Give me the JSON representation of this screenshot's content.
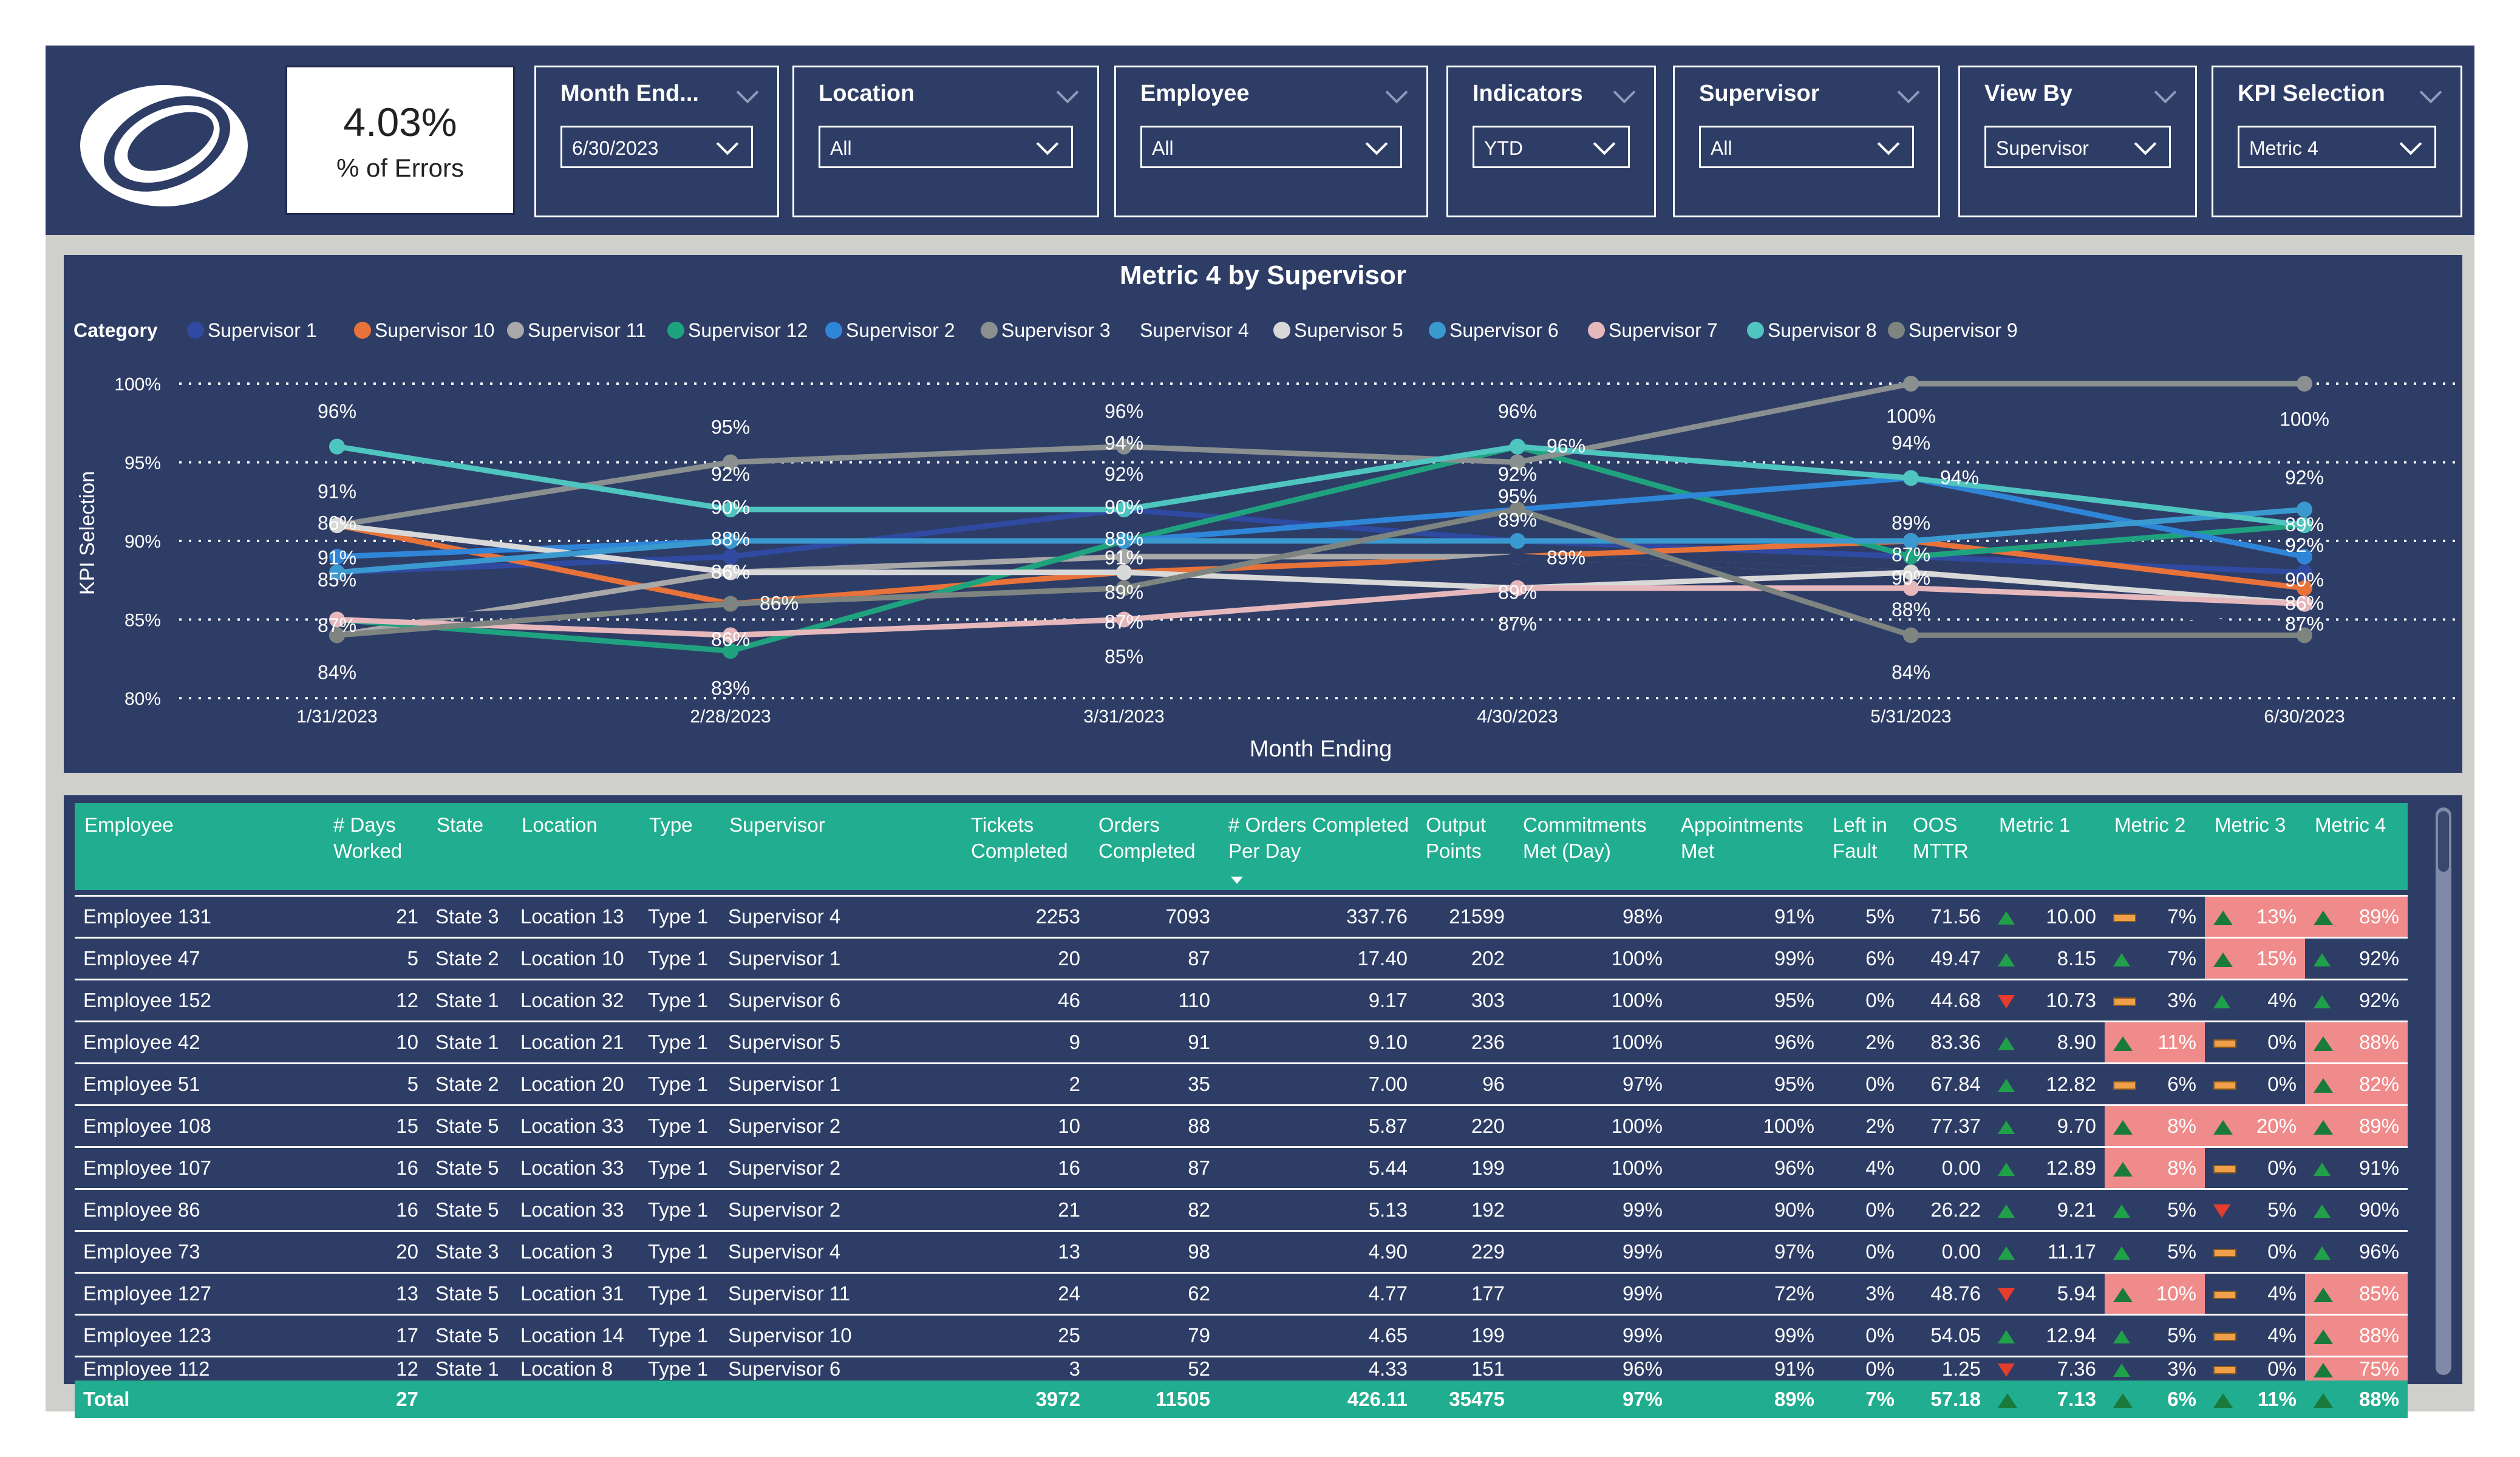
{
  "kpi": {
    "value": "4.03%",
    "label": "% of Errors"
  },
  "slicers": [
    {
      "title": "Month End...",
      "value": "6/30/2023"
    },
    {
      "title": "Location",
      "value": "All"
    },
    {
      "title": "Employee",
      "value": "All"
    },
    {
      "title": "Indicators",
      "value": "YTD"
    },
    {
      "title": "Supervisor",
      "value": "All"
    },
    {
      "title": "View By",
      "value": "Supervisor"
    },
    {
      "title": "KPI Selection",
      "value": "Metric 4"
    }
  ],
  "chart_data": {
    "type": "line",
    "title": "Metric 4 by Supervisor",
    "legend_title": "Category",
    "xlabel": "Month Ending",
    "ylabel": "KPI Selection",
    "x": [
      "1/31/2023",
      "2/28/2023",
      "3/31/2023",
      "4/30/2023",
      "5/31/2023",
      "6/30/2023"
    ],
    "ylim": [
      80,
      100
    ],
    "yticks": [
      "80%",
      "85%",
      "90%",
      "95%",
      "100%"
    ],
    "series": [
      {
        "name": "Supervisor 1",
        "color": "#2f4aa0",
        "values": [
          88,
          89,
          92,
          90,
          89,
          88
        ]
      },
      {
        "name": "Supervisor 10",
        "color": "#e8733a",
        "values": [
          91,
          86,
          88,
          89,
          90,
          87
        ]
      },
      {
        "name": "Supervisor 11",
        "color": "#a8a8a8",
        "values": [
          84,
          88,
          89,
          89,
          88,
          86
        ]
      },
      {
        "name": "Supervisor 12",
        "color": "#1fa37f",
        "values": [
          85,
          83,
          90,
          96,
          89,
          91
        ]
      },
      {
        "name": "Supervisor 2",
        "color": "#2f86d8",
        "values": [
          89,
          90,
          90,
          92,
          94,
          89
        ]
      },
      {
        "name": "Supervisor 3",
        "color": "#8a8f8f",
        "values": [
          91,
          95,
          96,
          95,
          100,
          100
        ]
      },
      {
        "name": "Supervisor 4",
        "color": "#2e3d66",
        "values": [
          85,
          86,
          87,
          89,
          88,
          84
        ]
      },
      {
        "name": "Supervisor 5",
        "color": "#d8d8d8",
        "values": [
          91,
          88,
          88,
          87,
          88,
          86
        ]
      },
      {
        "name": "Supervisor 6",
        "color": "#3a9ad0",
        "values": [
          88,
          90,
          90,
          90,
          90,
          92
        ]
      },
      {
        "name": "Supervisor 7",
        "color": "#e6b8bc",
        "values": [
          85,
          84,
          85,
          87,
          87,
          86
        ]
      },
      {
        "name": "Supervisor 8",
        "color": "#4fc5c0",
        "values": [
          96,
          92,
          92,
          96,
          94,
          91
        ]
      },
      {
        "name": "Supervisor 9",
        "color": "#7e8480",
        "values": [
          84,
          86,
          87,
          92,
          84,
          84
        ]
      }
    ],
    "data_labels": [
      {
        "i": 0,
        "t": "96%",
        "v": 98.2
      },
      {
        "i": 0,
        "t": "91%",
        "v": 93.1
      },
      {
        "i": 0,
        "t": "86%",
        "v": 91.1
      },
      {
        "i": 0,
        "t": "91%",
        "v": 88.9
      },
      {
        "i": 0,
        "t": "85%",
        "v": 87.5
      },
      {
        "i": 0,
        "t": "87%",
        "v": 84.6
      },
      {
        "i": 0,
        "t": "84%",
        "v": 81.6
      },
      {
        "i": 1,
        "t": "95%",
        "v": 97.2
      },
      {
        "i": 1,
        "t": "92%",
        "v": 94.2
      },
      {
        "i": 1,
        "t": "90%",
        "v": 92.1
      },
      {
        "i": 1,
        "t": "88%",
        "v": 90.1
      },
      {
        "i": 1,
        "t": "86%",
        "v": 88.0
      },
      {
        "i": 1,
        "t": "86%",
        "v": 86.0,
        "dx": 80
      },
      {
        "i": 1,
        "t": "86%",
        "v": 83.7
      },
      {
        "i": 1,
        "t": "83%",
        "v": 80.6
      },
      {
        "i": 2,
        "t": "96%",
        "v": 98.2
      },
      {
        "i": 2,
        "t": "94%",
        "v": 96.2
      },
      {
        "i": 2,
        "t": "92%",
        "v": 94.2
      },
      {
        "i": 2,
        "t": "90%",
        "v": 92.1
      },
      {
        "i": 2,
        "t": "88%",
        "v": 90.1
      },
      {
        "i": 2,
        "t": "91%",
        "v": 88.9
      },
      {
        "i": 2,
        "t": "89%",
        "v": 86.7
      },
      {
        "i": 2,
        "t": "87%",
        "v": 84.8
      },
      {
        "i": 2,
        "t": "85%",
        "v": 82.6
      },
      {
        "i": 3,
        "t": "96%",
        "v": 98.2
      },
      {
        "i": 3,
        "t": "96%",
        "v": 96.0,
        "dx": 80
      },
      {
        "i": 3,
        "t": "92%",
        "v": 94.2
      },
      {
        "i": 3,
        "t": "95%",
        "v": 92.8
      },
      {
        "i": 3,
        "t": "89%",
        "v": 91.3
      },
      {
        "i": 3,
        "t": "89%",
        "v": 88.9,
        "dx": 80
      },
      {
        "i": 3,
        "t": "89%",
        "v": 86.7
      },
      {
        "i": 3,
        "t": "87%",
        "v": 84.7
      },
      {
        "i": 4,
        "t": "100%",
        "v": 97.9
      },
      {
        "i": 4,
        "t": "94%",
        "v": 96.2
      },
      {
        "i": 4,
        "t": "94%",
        "v": 94.0,
        "dx": 80
      },
      {
        "i": 4,
        "t": "89%",
        "v": 91.1
      },
      {
        "i": 4,
        "t": "87%",
        "v": 89.1
      },
      {
        "i": 4,
        "t": "90%",
        "v": 87.6
      },
      {
        "i": 4,
        "t": "88%",
        "v": 85.6
      },
      {
        "i": 4,
        "t": "84%",
        "v": 81.6
      },
      {
        "i": 5,
        "t": "100%",
        "v": 97.7
      },
      {
        "i": 5,
        "t": "92%",
        "v": 94.0
      },
      {
        "i": 5,
        "t": "89%",
        "v": 91.0
      },
      {
        "i": 5,
        "t": "92%",
        "v": 89.7
      },
      {
        "i": 5,
        "t": "90%",
        "v": 87.5
      },
      {
        "i": 5,
        "t": "86%",
        "v": 86.0
      },
      {
        "i": 5,
        "t": "87%",
        "v": 84.7
      }
    ]
  },
  "table": {
    "columns": [
      "Employee",
      "# Days Worked",
      "State",
      "Location",
      "Type",
      "Supervisor",
      "Tickets Completed",
      "Orders Completed",
      "# Orders Completed Per Day",
      "Output Points",
      "Commitments Met (Day)",
      "Appointments Met",
      "Left in Fault",
      "OOS MTTR",
      "Metric 1",
      "Metric 2",
      "Metric 3",
      "Metric 4"
    ],
    "rows": [
      {
        "c": [
          "Employee 131",
          "21",
          "State 3",
          "Location 13",
          "Type 1",
          "Supervisor 4",
          "2253",
          "7093",
          "337.76",
          "21599",
          "98%",
          "91%",
          "5%",
          "71.56",
          "10.00",
          "7%",
          "13%",
          "89%"
        ],
        "ind": [
          "up",
          "flat",
          "upo",
          "upo"
        ],
        "pink": [
          false,
          false,
          true,
          true
        ]
      },
      {
        "c": [
          "Employee 47",
          "5",
          "State 2",
          "Location 10",
          "Type 1",
          "Supervisor 1",
          "20",
          "87",
          "17.40",
          "202",
          "100%",
          "99%",
          "6%",
          "49.47",
          "8.15",
          "7%",
          "15%",
          "92%"
        ],
        "ind": [
          "up",
          "up",
          "upo",
          "up"
        ],
        "pink": [
          false,
          false,
          true,
          false
        ]
      },
      {
        "c": [
          "Employee 152",
          "12",
          "State 1",
          "Location 32",
          "Type 1",
          "Supervisor 6",
          "46",
          "110",
          "9.17",
          "303",
          "100%",
          "95%",
          "0%",
          "44.68",
          "10.73",
          "3%",
          "4%",
          "92%"
        ],
        "ind": [
          "down",
          "flat",
          "up",
          "up"
        ],
        "pink": [
          false,
          false,
          false,
          false
        ]
      },
      {
        "c": [
          "Employee 42",
          "10",
          "State 1",
          "Location 21",
          "Type 1",
          "Supervisor 5",
          "9",
          "91",
          "9.10",
          "236",
          "100%",
          "96%",
          "2%",
          "83.36",
          "8.90",
          "11%",
          "0%",
          "88%"
        ],
        "ind": [
          "up",
          "upo",
          "flat",
          "upo"
        ],
        "pink": [
          false,
          true,
          false,
          true
        ]
      },
      {
        "c": [
          "Employee 51",
          "5",
          "State 2",
          "Location 20",
          "Type 1",
          "Supervisor 1",
          "2",
          "35",
          "7.00",
          "96",
          "97%",
          "95%",
          "0%",
          "67.84",
          "12.82",
          "6%",
          "0%",
          "82%"
        ],
        "ind": [
          "up",
          "flat",
          "flat",
          "upo"
        ],
        "pink": [
          false,
          false,
          false,
          true
        ]
      },
      {
        "c": [
          "Employee 108",
          "15",
          "State 5",
          "Location 33",
          "Type 1",
          "Supervisor 2",
          "10",
          "88",
          "5.87",
          "220",
          "100%",
          "100%",
          "2%",
          "77.37",
          "9.70",
          "8%",
          "20%",
          "89%"
        ],
        "ind": [
          "up",
          "upo",
          "upo",
          "upo"
        ],
        "pink": [
          false,
          true,
          true,
          true
        ]
      },
      {
        "c": [
          "Employee 107",
          "16",
          "State 5",
          "Location 33",
          "Type 1",
          "Supervisor 2",
          "16",
          "87",
          "5.44",
          "199",
          "100%",
          "96%",
          "4%",
          "0.00",
          "12.89",
          "8%",
          "0%",
          "91%"
        ],
        "ind": [
          "up",
          "upo",
          "flat",
          "up"
        ],
        "pink": [
          false,
          true,
          false,
          false
        ]
      },
      {
        "c": [
          "Employee 86",
          "16",
          "State 5",
          "Location 33",
          "Type 1",
          "Supervisor 2",
          "21",
          "82",
          "5.13",
          "192",
          "99%",
          "90%",
          "0%",
          "26.22",
          "9.21",
          "5%",
          "5%",
          "90%"
        ],
        "ind": [
          "up",
          "up",
          "down",
          "up"
        ],
        "pink": [
          false,
          false,
          false,
          false
        ]
      },
      {
        "c": [
          "Employee 73",
          "20",
          "State 3",
          "Location 3",
          "Type 1",
          "Supervisor 4",
          "13",
          "98",
          "4.90",
          "229",
          "99%",
          "97%",
          "0%",
          "0.00",
          "11.17",
          "5%",
          "0%",
          "96%"
        ],
        "ind": [
          "up",
          "up",
          "flat",
          "up"
        ],
        "pink": [
          false,
          false,
          false,
          false
        ]
      },
      {
        "c": [
          "Employee 127",
          "13",
          "State 5",
          "Location 31",
          "Type 1",
          "Supervisor 11",
          "24",
          "62",
          "4.77",
          "177",
          "99%",
          "72%",
          "3%",
          "48.76",
          "5.94",
          "10%",
          "4%",
          "85%"
        ],
        "ind": [
          "down",
          "upo",
          "flat",
          "upo"
        ],
        "pink": [
          false,
          true,
          false,
          true
        ]
      },
      {
        "c": [
          "Employee 123",
          "17",
          "State 5",
          "Location 14",
          "Type 1",
          "Supervisor 10",
          "25",
          "79",
          "4.65",
          "199",
          "99%",
          "99%",
          "0%",
          "54.05",
          "12.94",
          "5%",
          "4%",
          "88%"
        ],
        "ind": [
          "up",
          "up",
          "flat",
          "upo"
        ],
        "pink": [
          false,
          false,
          false,
          true
        ]
      }
    ],
    "partial_row": {
      "c": [
        "Employee 112",
        "12",
        "State 1",
        "Location 8",
        "Type 1",
        "Supervisor 6",
        "3",
        "52",
        "4.33",
        "151",
        "96%",
        "91%",
        "0%",
        "1.25",
        "7.36",
        "3%",
        "0%",
        "75%"
      ],
      "ind": [
        "down",
        "up",
        "flat",
        "upo"
      ],
      "pink": [
        false,
        false,
        false,
        true
      ]
    },
    "total": {
      "c": [
        "Total",
        "27",
        "",
        "",
        "",
        "",
        "3972",
        "11505",
        "426.11",
        "35475",
        "97%",
        "89%",
        "7%",
        "57.18",
        "7.13",
        "6%",
        "11%",
        "88%"
      ],
      "ind": [
        "upo",
        "upo",
        "upo",
        "upo"
      ]
    }
  }
}
